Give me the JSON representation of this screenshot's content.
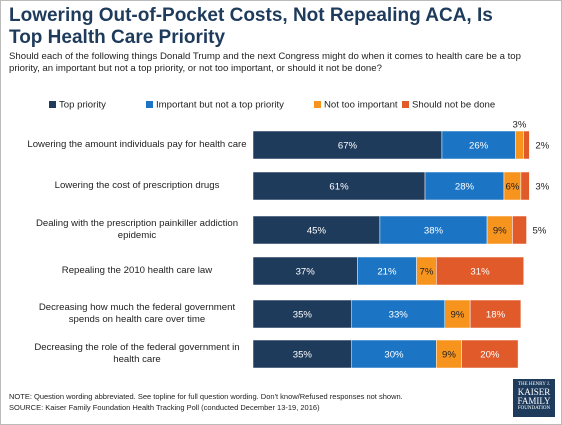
{
  "chart_data": {
    "type": "stacked-bar-horizontal",
    "title": "Lowering Out-of-Pocket Costs, Not Repealing ACA, Is Top Health Care Priority",
    "subtitle": "Should each of the following things Donald Trump and the next Congress might do when it comes to health care be a top priority, an important but not a top priority, or not too important, or should it not be done?",
    "categories": [
      "Lowering the amount individuals pay for health care",
      "Lowering the cost of prescription drugs",
      "Dealing with the prescription painkiller addiction epidemic",
      "Repealing the 2010 health care law",
      "Decreasing how much the federal government spends on health care over time",
      "Decreasing the role of the federal government in health care"
    ],
    "series": [
      {
        "name": "Top priority",
        "color": "#1f3b5c",
        "values": [
          67,
          61,
          45,
          37,
          35,
          35
        ],
        "value_labels": [
          "67%",
          "61%",
          "45%",
          "37%",
          "35%",
          "35%"
        ]
      },
      {
        "name": "Important but not a top priority",
        "color": "#1b75c4",
        "values": [
          26,
          28,
          38,
          21,
          33,
          30
        ],
        "value_labels": [
          "26%",
          "28%",
          "38%",
          "21%",
          "33%",
          "30%"
        ]
      },
      {
        "name": "Not too important",
        "color": "#f7941e",
        "values": [
          3,
          6,
          9,
          7,
          9,
          9
        ],
        "value_labels": [
          "3%",
          "6%",
          "9%",
          "7%",
          "9%",
          "9%"
        ]
      },
      {
        "name": "Should not be done",
        "color": "#e05a2a",
        "values": [
          2,
          3,
          5,
          31,
          18,
          20
        ],
        "value_labels": [
          "2%",
          "3%",
          "5%",
          "31%",
          "18%",
          "20%"
        ]
      }
    ],
    "notes": [
      "NOTE: Question wording abbreviated. See topline for full question wording. Don't know/Refused responses not shown.",
      "SOURCE: Kaiser Family Foundation Health Tracking Poll (conducted December 13-19, 2016)"
    ],
    "logo": [
      "THE HENRY J.",
      "KAISER",
      "FAMILY",
      "FOUNDATION"
    ]
  }
}
